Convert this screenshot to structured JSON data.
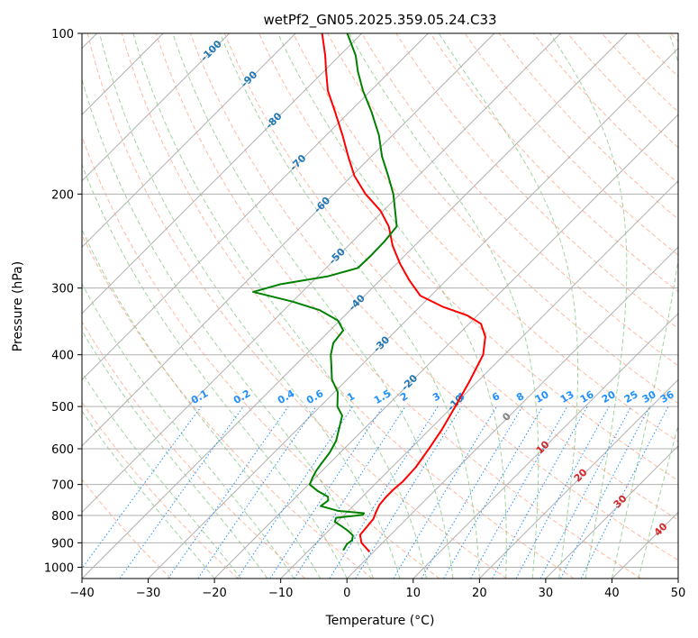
{
  "chart_data": {
    "type": "skew-t",
    "title": "wetPf2_GN05.2025.359.05.24.C33",
    "xlabel": "Temperature (°C)",
    "ylabel": "Pressure (hPa)",
    "xlim": [
      -40,
      50
    ],
    "ylim": [
      1050,
      100
    ],
    "xticks": [
      -40,
      -30,
      -20,
      -10,
      0,
      10,
      20,
      30,
      40,
      50
    ],
    "xtick_labels": [
      "−40",
      "−30",
      "−20",
      "−10",
      "0",
      "10",
      "20",
      "30",
      "40",
      "50"
    ],
    "yticks": [
      1000,
      900,
      800,
      700,
      600,
      500,
      400,
      300,
      200,
      100
    ],
    "ytick_labels": [
      "1000",
      "900",
      "800",
      "700",
      "600",
      "500",
      "400",
      "300",
      "200",
      "100"
    ],
    "grid": true,
    "series": [
      {
        "name": "temperature",
        "color": "#ff0000",
        "points": [
          [
            936,
            -0.6
          ],
          [
            900,
            -3.2
          ],
          [
            870,
            -4.6
          ],
          [
            840,
            -4.8
          ],
          [
            812,
            -5.0
          ],
          [
            790,
            -5.6
          ],
          [
            765,
            -6.2
          ],
          [
            740,
            -6.4
          ],
          [
            715,
            -6.4
          ],
          [
            690,
            -6.2
          ],
          [
            650,
            -6.4
          ],
          [
            600,
            -7.2
          ],
          [
            550,
            -8.2
          ],
          [
            500,
            -9.6
          ],
          [
            450,
            -11.2
          ],
          [
            400,
            -13.2
          ],
          [
            370,
            -15.6
          ],
          [
            350,
            -18.2
          ],
          [
            338,
            -21.4
          ],
          [
            325,
            -26.6
          ],
          [
            310,
            -31.6
          ],
          [
            290,
            -35.6
          ],
          [
            270,
            -39.5
          ],
          [
            250,
            -43.3
          ],
          [
            230,
            -46.8
          ],
          [
            215,
            -50.4
          ],
          [
            200,
            -55.2
          ],
          [
            185,
            -59.6
          ],
          [
            170,
            -63.5
          ],
          [
            155,
            -67.6
          ],
          [
            140,
            -72.3
          ],
          [
            128,
            -76.5
          ],
          [
            118,
            -79.6
          ],
          [
            110,
            -82.2
          ],
          [
            100,
            -86.0
          ]
        ]
      },
      {
        "name": "dewpoint",
        "color": "#008000",
        "points": [
          [
            930,
            -4.8
          ],
          [
            905,
            -5.2
          ],
          [
            890,
            -5.0
          ],
          [
            872,
            -5.6
          ],
          [
            855,
            -7.0
          ],
          [
            838,
            -8.7
          ],
          [
            822,
            -10.4
          ],
          [
            808,
            -10.8
          ],
          [
            798,
            -7.2
          ],
          [
            792,
            -7.3
          ],
          [
            784,
            -11.6
          ],
          [
            768,
            -14.9
          ],
          [
            750,
            -14.6
          ],
          [
            738,
            -15.2
          ],
          [
            720,
            -17.6
          ],
          [
            700,
            -19.8
          ],
          [
            680,
            -20.4
          ],
          [
            660,
            -20.9
          ],
          [
            640,
            -21.2
          ],
          [
            610,
            -21.6
          ],
          [
            580,
            -22.4
          ],
          [
            550,
            -23.8
          ],
          [
            520,
            -25.3
          ],
          [
            500,
            -27.4
          ],
          [
            470,
            -29.5
          ],
          [
            445,
            -32.3
          ],
          [
            420,
            -34.4
          ],
          [
            400,
            -36.2
          ],
          [
            380,
            -37.6
          ],
          [
            360,
            -38.0
          ],
          [
            345,
            -40.3
          ],
          [
            330,
            -44.6
          ],
          [
            318,
            -50.0
          ],
          [
            305,
            -57.4
          ],
          [
            295,
            -54.4
          ],
          [
            285,
            -48.4
          ],
          [
            275,
            -45.2
          ],
          [
            260,
            -45.1
          ],
          [
            245,
            -45.2
          ],
          [
            230,
            -45.6
          ],
          [
            215,
            -48.2
          ],
          [
            200,
            -51.0
          ],
          [
            185,
            -54.5
          ],
          [
            170,
            -58.4
          ],
          [
            155,
            -62.1
          ],
          [
            140,
            -66.8
          ],
          [
            128,
            -71.2
          ],
          [
            118,
            -74.8
          ],
          [
            110,
            -77.6
          ],
          [
            100,
            -82.2
          ]
        ]
      }
    ],
    "isotherm_labels": [
      "-100",
      "-90",
      "-80",
      "-70",
      "-60",
      "-50",
      "-40",
      "-30",
      "-20",
      "-10"
    ],
    "mixing_ratio_labels": [
      "0.1",
      "0.2",
      "0.4",
      "0.6",
      "1",
      "1.5",
      "2",
      "3",
      "4",
      "6",
      "8",
      "10",
      "13",
      "16",
      "20",
      "25",
      "30",
      "36"
    ],
    "mixing_ratios_gkg": [
      0.1,
      0.2,
      0.4,
      0.6,
      1,
      1.5,
      2,
      3,
      4,
      6,
      8,
      10,
      13,
      16,
      20,
      25,
      30,
      36
    ],
    "isotherm_1000hpa_labels": [
      "0",
      "10",
      "20",
      "30",
      "40"
    ],
    "colors": {
      "isotherm": "#b0b0b0",
      "dry_adiabat": "#ff7f50",
      "moist_adiabat": "#2ca02c",
      "mixing_ratio": "#1e90ff",
      "temperature": "#ff0000",
      "dewpoint": "#008000"
    }
  }
}
